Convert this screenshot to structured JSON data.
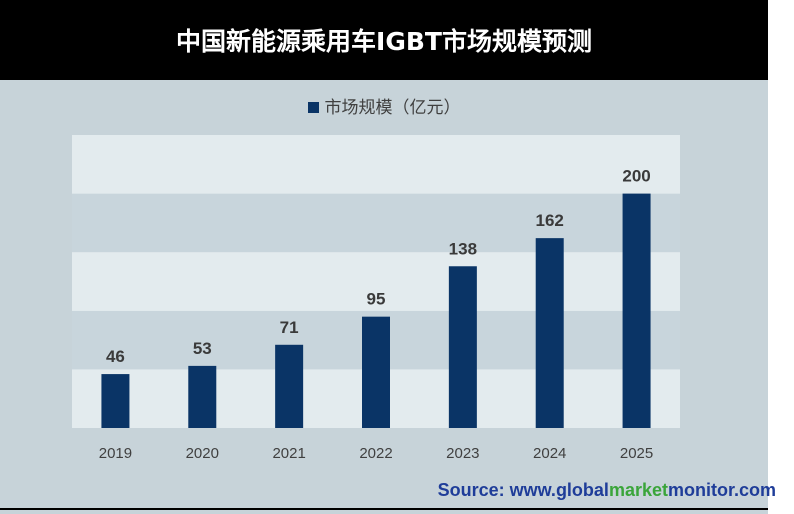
{
  "title": "中国新能源乘用车IGBT市场规模预测",
  "source": {
    "prefix": "Source: www.",
    "word1": "global",
    "word2": "market",
    "word3": "monitor",
    "suffix": ".com"
  },
  "colors": {
    "bar": "#0a3466",
    "band_light": "#e3ebee",
    "band_dark": "#c8d5dc",
    "source_blue": "#1f3d99",
    "source_green": "#3aa53a"
  },
  "chart_data": {
    "type": "bar",
    "title": "中国新能源乘用车IGBT市场规模预测",
    "categories": [
      "2019",
      "2020",
      "2021",
      "2022",
      "2023",
      "2024",
      "2025"
    ],
    "series": [
      {
        "name": "市场规模（亿元）",
        "values": [
          46,
          53,
          71,
          95,
          138,
          162,
          200
        ]
      }
    ],
    "ylim": [
      0,
      250
    ],
    "legend": "top-center",
    "grid": "alternating horizontal bands"
  }
}
